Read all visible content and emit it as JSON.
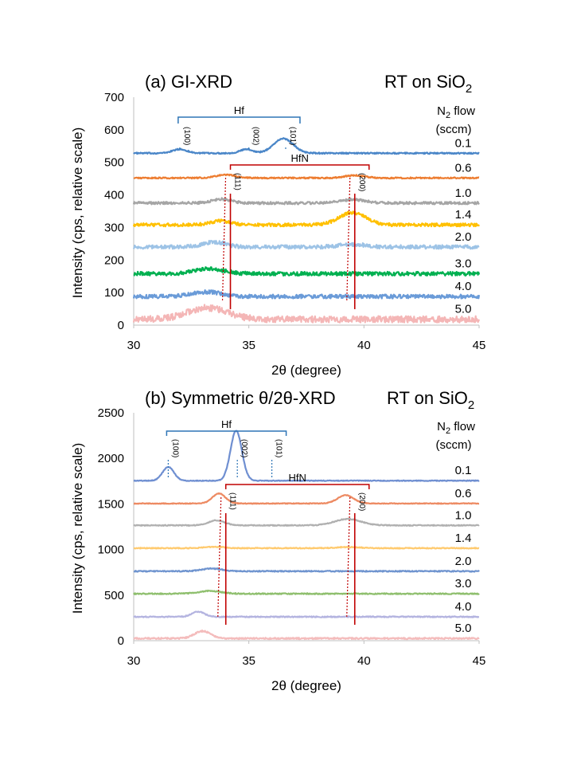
{
  "chart_data": [
    {
      "type": "line",
      "panel": "(a)",
      "title": "(a) GI-XRD",
      "condition": "RT on SiO",
      "condition_sub": "2",
      "xlabel": "2θ (degree)",
      "ylabel": "Intensity (cps, relative scale)",
      "xlim": [
        30,
        45
      ],
      "ylim": [
        0,
        700
      ],
      "xticks": [
        "30",
        "35",
        "40",
        "45"
      ],
      "yticks": [
        "0",
        "100",
        "200",
        "300",
        "400",
        "500",
        "600",
        "700"
      ],
      "legend_title_1": "N",
      "legend_title_sub": "2",
      "legend_title_2": " flow",
      "legend_title_line2": "(sccm)",
      "hf_label": "Hf",
      "hf_peaks": [
        {
          "label": "(100)",
          "x": 32.0
        },
        {
          "label": "(002)",
          "x": 35.0
        },
        {
          "label": "(101)",
          "x": 36.6
        }
      ],
      "hfn_label": "HfN",
      "hfn_peaks": [
        {
          "label": "(111)",
          "x": 34.2
        },
        {
          "label": "(200)",
          "x": 39.6
        }
      ],
      "series": [
        {
          "name": "0.1",
          "color": "#4a86c8",
          "baseline": 528,
          "noise": 2,
          "peaks": [
            {
              "x": 32.0,
              "h": 12,
              "w": 0.45
            },
            {
              "x": 34.9,
              "h": 12,
              "w": 0.4
            },
            {
              "x": 36.5,
              "h": 45,
              "w": 0.6
            }
          ]
        },
        {
          "name": "0.6",
          "color": "#ed7d31",
          "baseline": 452,
          "noise": 2,
          "peaks": [
            {
              "x": 34.0,
              "h": 10,
              "w": 0.6
            },
            {
              "x": 39.6,
              "h": 8,
              "w": 0.6
            }
          ]
        },
        {
          "name": "1.0",
          "color": "#a5a5a5",
          "baseline": 375,
          "noise": 4,
          "peaks": [
            {
              "x": 33.8,
              "h": 12,
              "w": 0.6
            },
            {
              "x": 39.5,
              "h": 10,
              "w": 0.8
            }
          ]
        },
        {
          "name": "1.4",
          "color": "#ffc000",
          "baseline": 308,
          "noise": 5,
          "peaks": [
            {
              "x": 33.8,
              "h": 12,
              "w": 0.6
            },
            {
              "x": 39.5,
              "h": 38,
              "w": 0.8
            }
          ]
        },
        {
          "name": "2.0",
          "color": "#9dc3e6",
          "baseline": 240,
          "noise": 6,
          "peaks": [
            {
              "x": 33.5,
              "h": 15,
              "w": 0.7
            },
            {
              "x": 39.5,
              "h": 8,
              "w": 0.8
            }
          ]
        },
        {
          "name": "3.0",
          "color": "#00b050",
          "baseline": 158,
          "noise": 6,
          "peaks": [
            {
              "x": 33.3,
              "h": 15,
              "w": 0.9
            }
          ]
        },
        {
          "name": "4.0",
          "color": "#6a9bd8",
          "baseline": 88,
          "noise": 6,
          "peaks": [
            {
              "x": 33.2,
              "h": 14,
              "w": 0.9
            }
          ]
        },
        {
          "name": "5.0",
          "color": "#f4b6b6",
          "baseline": 18,
          "noise": 10,
          "peaks": [
            {
              "x": 33.2,
              "h": 35,
              "w": 1.2
            }
          ]
        }
      ]
    },
    {
      "type": "line",
      "panel": "(b)",
      "title": "(b) Symmetric θ/2θ-XRD",
      "condition": "RT on SiO",
      "condition_sub": "2",
      "xlabel": "2θ (degree)",
      "ylabel": "Intensity (cps, relative scale)",
      "xlim": [
        30,
        45
      ],
      "ylim": [
        0,
        2500
      ],
      "xticks": [
        "30",
        "35",
        "40",
        "45"
      ],
      "yticks": [
        "0",
        "500",
        "1000",
        "1500",
        "2000",
        "2500"
      ],
      "legend_title_1": "N",
      "legend_title_sub": "2",
      "legend_title_2": " flow",
      "legend_title_line2": "(sccm)",
      "hf_label": "Hf",
      "hf_peaks": [
        {
          "label": "(100)",
          "x": 31.5
        },
        {
          "label": "(002)",
          "x": 34.5
        },
        {
          "label": "(101)",
          "x": 36.0
        }
      ],
      "hfn_label": "HfN",
      "hfn_peaks": [
        {
          "label": "(111)",
          "x": 34.0
        },
        {
          "label": "(200)",
          "x": 39.6
        }
      ],
      "series": [
        {
          "name": "0.1",
          "color": "#6f8fd1",
          "baseline": 1755,
          "noise": 4,
          "peaks": [
            {
              "x": 31.5,
              "h": 150,
              "w": 0.35
            },
            {
              "x": 34.45,
              "h": 550,
              "w": 0.35
            }
          ]
        },
        {
          "name": "0.6",
          "color": "#ed8a62",
          "baseline": 1505,
          "noise": 4,
          "peaks": [
            {
              "x": 33.7,
              "h": 110,
              "w": 0.4
            },
            {
              "x": 39.2,
              "h": 90,
              "w": 0.5
            }
          ]
        },
        {
          "name": "1.0",
          "color": "#b0b0b0",
          "baseline": 1265,
          "noise": 5,
          "peaks": [
            {
              "x": 33.6,
              "h": 55,
              "w": 0.5
            },
            {
              "x": 39.3,
              "h": 70,
              "w": 0.8
            }
          ]
        },
        {
          "name": "1.4",
          "color": "#ffca6e",
          "baseline": 1015,
          "noise": 5,
          "peaks": [
            {
              "x": 33.5,
              "h": 15,
              "w": 0.6
            },
            {
              "x": 39.3,
              "h": 12,
              "w": 0.7
            }
          ]
        },
        {
          "name": "2.0",
          "color": "#6f94cf",
          "baseline": 762,
          "noise": 6,
          "peaks": [
            {
              "x": 33.4,
              "h": 30,
              "w": 0.6
            }
          ]
        },
        {
          "name": "3.0",
          "color": "#8fbf6e",
          "baseline": 515,
          "noise": 6,
          "peaks": [
            {
              "x": 33.3,
              "h": 30,
              "w": 0.7
            }
          ]
        },
        {
          "name": "4.0",
          "color": "#b4b4e0",
          "baseline": 262,
          "noise": 6,
          "peaks": [
            {
              "x": 32.8,
              "h": 55,
              "w": 0.4
            }
          ]
        },
        {
          "name": "5.0",
          "color": "#f4bcbc",
          "baseline": 25,
          "noise": 8,
          "peaks": [
            {
              "x": 33.0,
              "h": 80,
              "w": 0.5
            }
          ]
        }
      ]
    }
  ]
}
